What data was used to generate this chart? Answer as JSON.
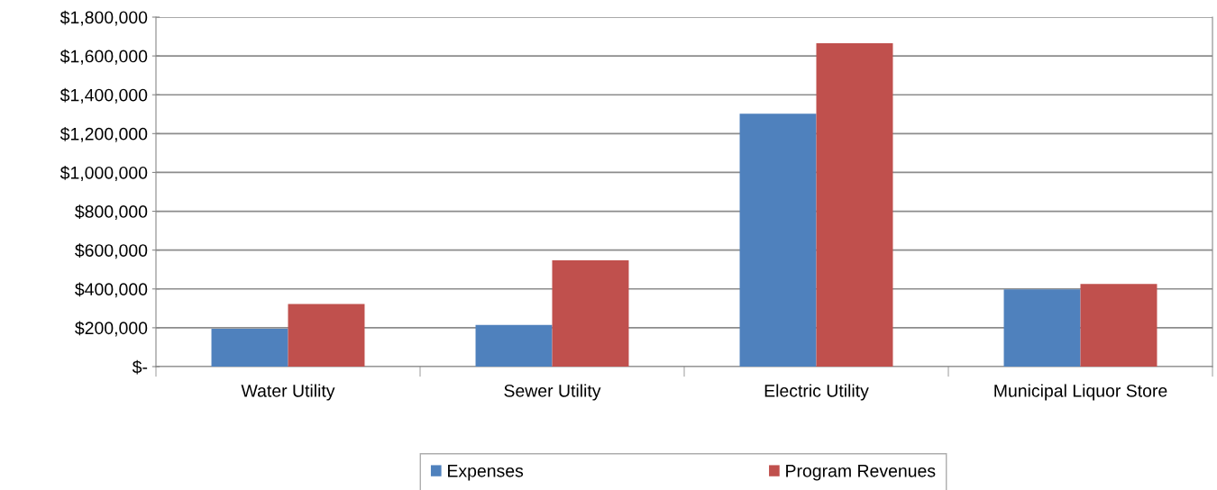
{
  "chart_data": {
    "type": "bar",
    "categories": [
      "Water Utility",
      "Sewer Utility",
      "Electric Utility",
      "Municipal Liquor Store"
    ],
    "series": [
      {
        "name": "Expenses",
        "color": "#4f81bd",
        "values": [
          195000,
          214000,
          1303000,
          398000
        ]
      },
      {
        "name": "Program Revenues",
        "color": "#c0504d",
        "values": [
          323000,
          547000,
          1666000,
          426000
        ]
      }
    ],
    "ylim": [
      0,
      1800000
    ],
    "yticks": [
      {
        "value": 0,
        "label": "$-"
      },
      {
        "value": 200000,
        "label": "$200,000"
      },
      {
        "value": 400000,
        "label": "$400,000"
      },
      {
        "value": 600000,
        "label": "$600,000"
      },
      {
        "value": 800000,
        "label": "$800,000"
      },
      {
        "value": 1000000,
        "label": "$1,000,000"
      },
      {
        "value": 1200000,
        "label": "$1,200,000"
      },
      {
        "value": 1400000,
        "label": "$1,400,000"
      },
      {
        "value": 1600000,
        "label": "$1,600,000"
      },
      {
        "value": 1800000,
        "label": "$1,800,000"
      }
    ],
    "grid": "y",
    "legend": "bottom"
  }
}
